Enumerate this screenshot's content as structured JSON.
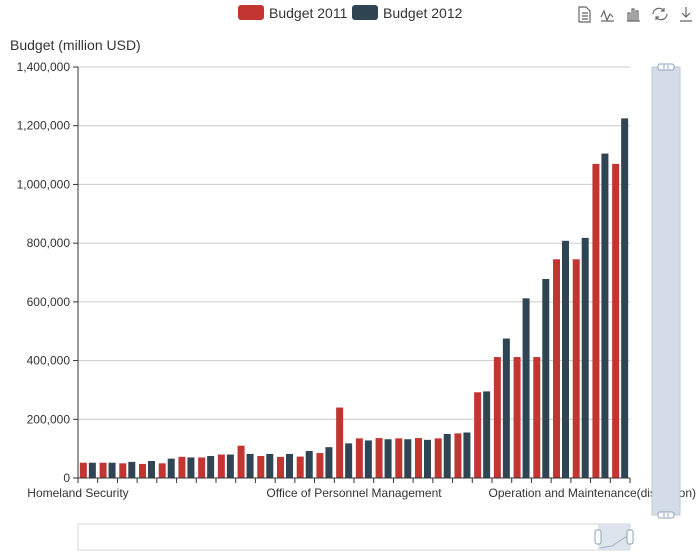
{
  "colors": {
    "series_2011": "#c23531",
    "series_2012": "#2f4554",
    "grid": "#cccccc",
    "axis": "#333333",
    "slider_bg": "#d4dde7",
    "slider_border": "#c0c9d4",
    "toolbox": "#666666"
  },
  "toolbox": {
    "icons": [
      "data-view-icon",
      "line-chart-icon",
      "bar-chart-icon",
      "restore-icon",
      "save-image-icon"
    ]
  },
  "chart_data": {
    "type": "bar",
    "ylabel": "Budget (million USD)",
    "ylim": [
      0,
      1400000
    ],
    "yticks": [
      "0",
      "200,000",
      "400,000",
      "600,000",
      "800,000",
      "1,000,000",
      "1,200,000",
      "1,400,000"
    ],
    "grid": true,
    "legend_position": "top-center",
    "x_tick_labels": [
      {
        "index": 0,
        "text": "Homeland Security"
      },
      {
        "index": 14,
        "text": "Office of Personnel Management"
      },
      {
        "index": 28,
        "text": "Operation and Maintenance(discretion)"
      }
    ],
    "category_count": 28,
    "series": [
      {
        "name": "Budget 2011",
        "values": [
          52000,
          52000,
          50000,
          48000,
          50000,
          72000,
          70000,
          80000,
          110000,
          75000,
          72000,
          73000,
          85000,
          240000,
          135000,
          136000,
          135000,
          136000,
          135000,
          152000,
          292000,
          412000,
          412000,
          412000,
          745000,
          745000,
          1070000,
          1070000
        ]
      },
      {
        "name": "Budget 2012",
        "values": [
          52000,
          52000,
          55000,
          58000,
          66000,
          70000,
          75000,
          80000,
          82000,
          82000,
          82000,
          92000,
          105000,
          118000,
          128000,
          132000,
          132000,
          130000,
          150000,
          155000,
          295000,
          475000,
          612000,
          678000,
          808000,
          818000,
          1105000,
          1225000
        ]
      }
    ]
  }
}
